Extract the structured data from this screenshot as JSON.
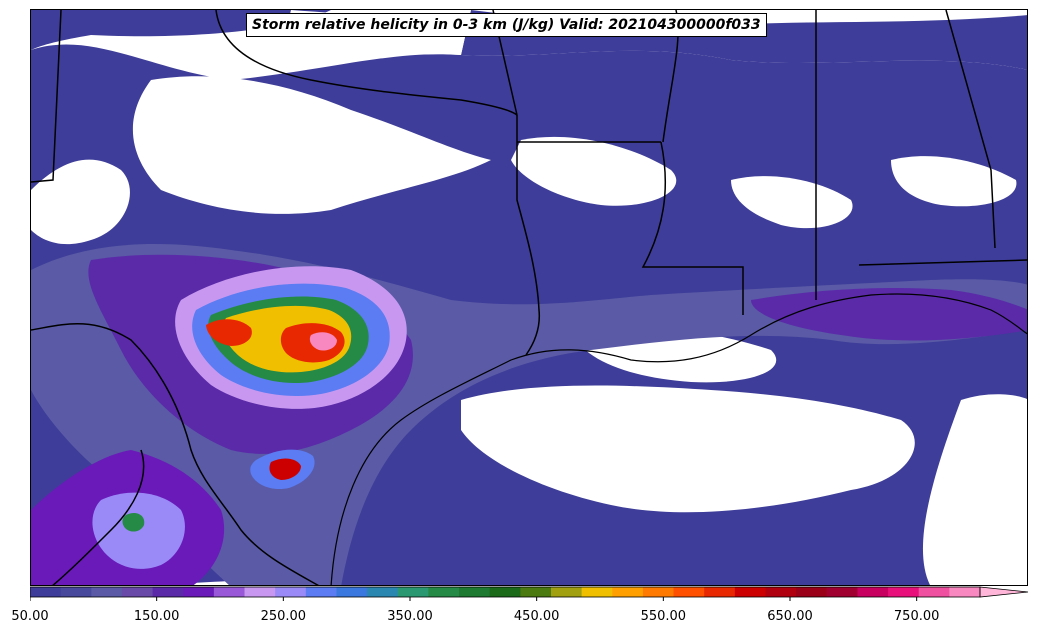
{
  "title": "Storm relative helicity in 0-3 km (J/kg) Valid: 202104300000f033",
  "colorbar": {
    "min": 50,
    "max": 800,
    "step": 25,
    "extend": "max",
    "ticks": [
      "50.00",
      "150.00",
      "250.00",
      "350.00",
      "450.00",
      "550.00",
      "650.00",
      "750.00"
    ],
    "colors": [
      "#3e3d99",
      "#48489d",
      "#5a5aa6",
      "#6a4aa8",
      "#5a2aa8",
      "#6a1ab8",
      "#9858d8",
      "#c898f0",
      "#9a8af8",
      "#5b7cf2",
      "#3a78e0",
      "#2a88b0",
      "#2a9870",
      "#258a45",
      "#1e7a30",
      "#1a6a1a",
      "#4a7a10",
      "#a0a010",
      "#f0c000",
      "#ffa000",
      "#ff7a00",
      "#ff5000",
      "#e82800",
      "#cc0000",
      "#b00010",
      "#9a0018",
      "#a00030",
      "#c80060",
      "#e8107a",
      "#f050a0",
      "#f888c0"
    ],
    "extend_color": "#ffb6d8"
  }
}
